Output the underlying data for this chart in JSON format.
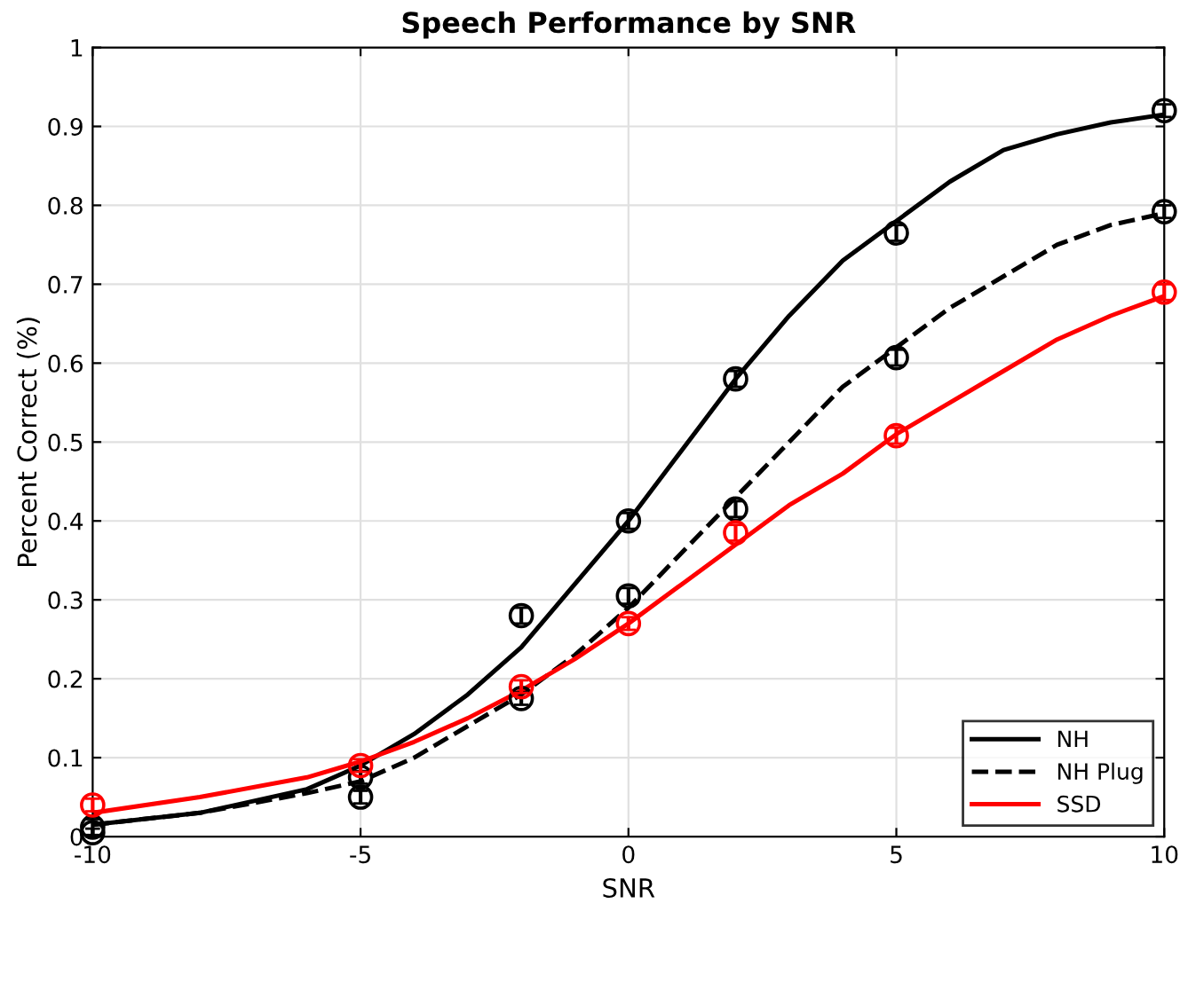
{
  "chart_data": {
    "type": "line",
    "title": "Speech Performance by SNR",
    "xlabel": "SNR",
    "ylabel": "Percent Correct (%)",
    "xlim": [
      -10,
      10
    ],
    "xticks": [
      -10,
      -5,
      0,
      5,
      10
    ],
    "ylim": [
      0,
      1
    ],
    "yticks": [
      0,
      0.1,
      0.2,
      0.3,
      0.4,
      0.5,
      0.6,
      0.7,
      0.8,
      0.9,
      1
    ],
    "grid": true,
    "legend": "bottom right",
    "series": [
      {
        "name": "NH",
        "color": "#000000",
        "line_style": "solid",
        "marker": "none",
        "x": [
          -10,
          -8,
          -6,
          -5,
          -4,
          -3,
          -2,
          -1,
          0,
          1,
          2,
          3,
          4,
          5,
          6,
          7,
          8,
          9,
          10
        ],
        "values": [
          0.015,
          0.03,
          0.06,
          0.09,
          0.13,
          0.18,
          0.24,
          0.32,
          0.4,
          0.49,
          0.58,
          0.66,
          0.73,
          0.78,
          0.83,
          0.87,
          0.89,
          0.905,
          0.915
        ]
      },
      {
        "name": "NH Plug",
        "color": "#000000",
        "line_style": "dashed",
        "marker": "none",
        "x": [
          -10,
          -8,
          -6,
          -5,
          -4,
          -3,
          -2,
          -1,
          0,
          1,
          2,
          3,
          4,
          5,
          6,
          7,
          8,
          9,
          10
        ],
        "values": [
          0.015,
          0.03,
          0.055,
          0.07,
          0.1,
          0.14,
          0.18,
          0.23,
          0.29,
          0.36,
          0.43,
          0.5,
          0.57,
          0.62,
          0.67,
          0.71,
          0.75,
          0.775,
          0.79
        ]
      },
      {
        "name": "SSD",
        "color": "#ff0000",
        "line_style": "solid",
        "marker": "none",
        "x": [
          -10,
          -8,
          -6,
          -5,
          -4,
          -3,
          -2,
          -1,
          0,
          1,
          2,
          3,
          4,
          5,
          6,
          7,
          8,
          9,
          10
        ],
        "values": [
          0.03,
          0.05,
          0.075,
          0.095,
          0.12,
          0.15,
          0.185,
          0.225,
          0.27,
          0.32,
          0.37,
          0.42,
          0.46,
          0.51,
          0.55,
          0.59,
          0.63,
          0.66,
          0.685
        ]
      },
      {
        "type": "scatter",
        "color": "#000000",
        "marker": "circle",
        "x": [
          -10,
          -5,
          -2,
          0,
          2,
          5,
          10
        ],
        "values": [
          0.012,
          0.075,
          0.28,
          0.4,
          0.58,
          0.765,
          0.92
        ],
        "errors": [
          0.01,
          0.008,
          0.01,
          0.01,
          0.01,
          0.01,
          0.008
        ]
      },
      {
        "type": "scatter",
        "color": "#000000",
        "marker": "circle",
        "x": [
          -10,
          -5,
          -2,
          0,
          2,
          5,
          10
        ],
        "values": [
          0.005,
          0.05,
          0.175,
          0.305,
          0.415,
          0.607,
          0.792
        ],
        "errors": [
          0.005,
          0.008,
          0.008,
          0.01,
          0.01,
          0.01,
          0.008
        ]
      },
      {
        "type": "scatter",
        "color": "#ff0000",
        "marker": "circle",
        "x": [
          -10,
          -5,
          -2,
          0,
          2,
          5,
          10
        ],
        "values": [
          0.04,
          0.09,
          0.19,
          0.27,
          0.385,
          0.508,
          0.69
        ],
        "errors": [
          0.008,
          0.008,
          0.008,
          0.008,
          0.01,
          0.01,
          0.01
        ]
      }
    ]
  }
}
